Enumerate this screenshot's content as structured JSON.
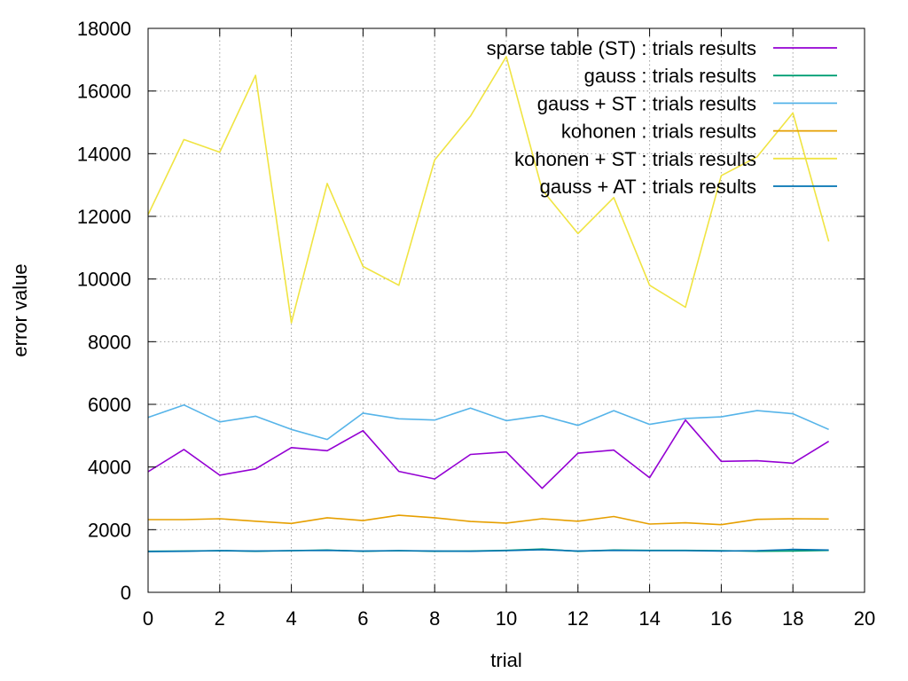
{
  "chart_data": {
    "type": "line",
    "xlabel": "trial",
    "ylabel": "error value",
    "xlim": [
      0,
      20
    ],
    "ylim": [
      0,
      18000
    ],
    "xticks": [
      0,
      2,
      4,
      6,
      8,
      10,
      12,
      14,
      16,
      18,
      20
    ],
    "yticks": [
      0,
      2000,
      4000,
      6000,
      8000,
      10000,
      12000,
      14000,
      16000,
      18000
    ],
    "grid": true,
    "legend_position": "top-right",
    "x": [
      0,
      1,
      2,
      3,
      4,
      5,
      6,
      7,
      8,
      9,
      10,
      11,
      12,
      13,
      14,
      15,
      16,
      17,
      18,
      19
    ],
    "series": [
      {
        "name": "sparse table (ST) : trials results",
        "color": "#9400d3",
        "values": [
          3850,
          4560,
          3740,
          3940,
          4620,
          4520,
          5160,
          3860,
          3620,
          4400,
          4480,
          3320,
          4440,
          4540,
          3660,
          5500,
          4180,
          4200,
          4120,
          4820
        ]
      },
      {
        "name": "gauss : trials results",
        "color": "#009e73",
        "values": [
          1310,
          1320,
          1330,
          1310,
          1330,
          1350,
          1310,
          1330,
          1310,
          1320,
          1340,
          1380,
          1310,
          1350,
          1340,
          1340,
          1330,
          1310,
          1320,
          1340
        ]
      },
      {
        "name": "gauss + ST : trials results",
        "color": "#56b4e9",
        "values": [
          5580,
          5980,
          5440,
          5620,
          5200,
          4880,
          5720,
          5540,
          5500,
          5880,
          5480,
          5640,
          5330,
          5800,
          5360,
          5550,
          5600,
          5800,
          5700,
          5200
        ]
      },
      {
        "name": "kohonen : trials results",
        "color": "#e69f00",
        "values": [
          2320,
          2320,
          2350,
          2270,
          2200,
          2380,
          2290,
          2460,
          2380,
          2260,
          2210,
          2350,
          2270,
          2420,
          2180,
          2220,
          2160,
          2330,
          2350,
          2340
        ]
      },
      {
        "name": "kohonen + ST : trials results",
        "color": "#f0e442",
        "values": [
          12050,
          14450,
          14050,
          16500,
          8600,
          13050,
          10400,
          9800,
          13800,
          15200,
          17100,
          12850,
          11450,
          12600,
          9800,
          9100,
          13300,
          13900,
          15300,
          11200
        ]
      },
      {
        "name": "gauss + AT : trials results",
        "color": "#0072b2",
        "values": [
          1300,
          1310,
          1330,
          1320,
          1330,
          1340,
          1320,
          1330,
          1320,
          1310,
          1330,
          1360,
          1320,
          1340,
          1330,
          1330,
          1320,
          1330,
          1370,
          1350
        ]
      }
    ]
  }
}
